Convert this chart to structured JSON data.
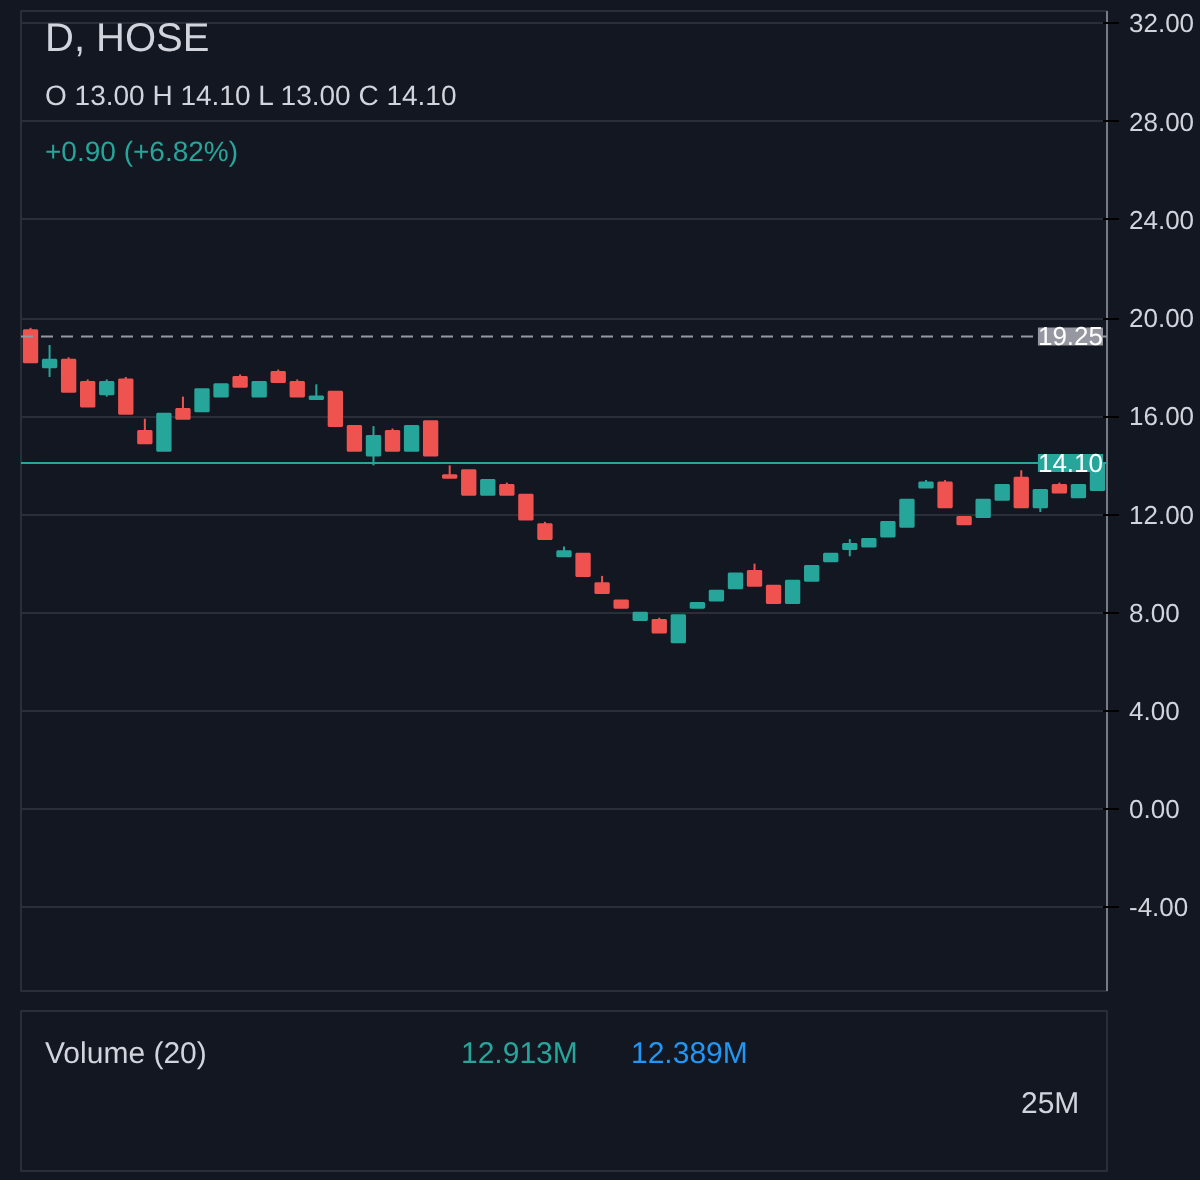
{
  "chart_data": [
    {
      "type": "candlestick",
      "title": "D, HOSE",
      "annotations": [
        "O 13.00 H 14.10 L 13.00 C 14.10",
        "+0.90 (+6.82%)"
      ],
      "categories": [
        null,
        null,
        null,
        null,
        null,
        null,
        null,
        null,
        null,
        null,
        null,
        null,
        null,
        null,
        null,
        null,
        null,
        null,
        null,
        null,
        null,
        null,
        null,
        null,
        null,
        null,
        null,
        null,
        null,
        null,
        null,
        null,
        null,
        null,
        null,
        null,
        null,
        null,
        null,
        null,
        null,
        null,
        null,
        null,
        null,
        null,
        null,
        null,
        null,
        null,
        null,
        null,
        null,
        null,
        null,
        null,
        null
      ],
      "ohlc": [
        [
          19.5,
          19.6,
          18.2,
          18.2
        ],
        [
          18.0,
          18.9,
          17.6,
          18.3
        ],
        [
          18.3,
          18.4,
          17.0,
          17.0
        ],
        [
          17.4,
          17.5,
          16.4,
          16.4
        ],
        [
          16.9,
          17.5,
          16.8,
          17.4
        ],
        [
          17.5,
          17.6,
          16.1,
          16.1
        ],
        [
          15.4,
          15.9,
          14.9,
          14.9
        ],
        [
          14.6,
          16.1,
          14.6,
          16.1
        ],
        [
          16.3,
          16.8,
          15.9,
          15.9
        ],
        [
          16.2,
          17.1,
          16.2,
          17.1
        ],
        [
          16.8,
          17.3,
          16.8,
          17.3
        ],
        [
          17.6,
          17.7,
          17.2,
          17.2
        ],
        [
          16.8,
          17.4,
          16.8,
          17.4
        ],
        [
          17.8,
          17.9,
          17.4,
          17.4
        ],
        [
          17.4,
          17.5,
          16.8,
          16.8
        ],
        [
          16.7,
          17.3,
          16.7,
          16.8
        ],
        [
          17.0,
          17.0,
          15.6,
          15.6
        ],
        [
          15.6,
          15.6,
          14.6,
          14.6
        ],
        [
          14.4,
          15.6,
          14.0,
          15.2
        ],
        [
          15.4,
          15.5,
          14.6,
          14.6
        ],
        [
          14.6,
          15.6,
          14.6,
          15.6
        ],
        [
          15.8,
          15.8,
          14.4,
          14.4
        ],
        [
          13.6,
          14.0,
          13.5,
          13.5
        ],
        [
          13.8,
          13.8,
          12.8,
          12.8
        ],
        [
          12.8,
          13.4,
          12.8,
          13.4
        ],
        [
          13.2,
          13.3,
          12.8,
          12.8
        ],
        [
          12.8,
          12.8,
          11.8,
          11.8
        ],
        [
          11.6,
          11.7,
          11.0,
          11.0
        ],
        [
          10.3,
          10.7,
          10.3,
          10.5
        ],
        [
          10.4,
          10.4,
          9.5,
          9.5
        ],
        [
          9.2,
          9.5,
          8.8,
          8.8
        ],
        [
          8.5,
          8.5,
          8.2,
          8.2
        ],
        [
          7.7,
          8.0,
          7.7,
          8.0
        ],
        [
          7.7,
          7.8,
          7.2,
          7.2
        ],
        [
          6.8,
          7.9,
          6.8,
          7.9
        ],
        [
          8.2,
          8.4,
          8.2,
          8.4
        ],
        [
          8.5,
          8.9,
          8.5,
          8.9
        ],
        [
          9.0,
          9.6,
          9.0,
          9.6
        ],
        [
          9.7,
          10.0,
          9.1,
          9.1
        ],
        [
          9.1,
          9.1,
          8.4,
          8.4
        ],
        [
          8.4,
          9.3,
          8.4,
          9.3
        ],
        [
          9.3,
          9.9,
          9.3,
          9.9
        ],
        [
          10.1,
          10.4,
          10.1,
          10.4
        ],
        [
          10.6,
          11.0,
          10.3,
          10.8
        ],
        [
          10.7,
          11.0,
          10.7,
          11.0
        ],
        [
          11.1,
          11.7,
          11.1,
          11.7
        ],
        [
          11.5,
          12.6,
          11.5,
          12.6
        ],
        [
          13.1,
          13.4,
          13.1,
          13.3
        ],
        [
          13.3,
          13.4,
          12.3,
          12.3
        ],
        [
          11.9,
          11.9,
          11.6,
          11.6
        ],
        [
          11.9,
          12.6,
          11.9,
          12.6
        ],
        [
          12.6,
          13.2,
          12.6,
          13.2
        ],
        [
          13.5,
          13.8,
          12.3,
          12.3
        ],
        [
          12.3,
          13.0,
          12.1,
          13.0
        ],
        [
          13.2,
          13.3,
          12.9,
          12.9
        ],
        [
          12.7,
          13.2,
          12.7,
          13.2
        ],
        [
          13.0,
          14.1,
          13.0,
          14.1
        ]
      ],
      "colors": [
        "#ef5350",
        "#26a69a",
        "#ef5350",
        "#ef5350",
        "#26a69a",
        "#ef5350",
        "#ef5350",
        "#26a69a",
        "#ef5350",
        "#26a69a",
        "#26a69a",
        "#ef5350",
        "#26a69a",
        "#ef5350",
        "#ef5350",
        "#26a69a",
        "#ef5350",
        "#ef5350",
        "#26a69a",
        "#ef5350",
        "#26a69a",
        "#ef5350",
        "#ef5350",
        "#ef5350",
        "#26a69a",
        "#ef5350",
        "#ef5350",
        "#ef5350",
        "#26a69a",
        "#ef5350",
        "#ef5350",
        "#ef5350",
        "#26a69a",
        "#ef5350",
        "#26a69a",
        "#26a69a",
        "#26a69a",
        "#26a69a",
        "#ef5350",
        "#ef5350",
        "#26a69a",
        "#26a69a",
        "#26a69a",
        "#26a69a",
        "#26a69a",
        "#26a69a",
        "#26a69a",
        "#26a69a",
        "#ef5350",
        "#ef5350",
        "#26a69a",
        "#26a69a",
        "#ef5350",
        "#26a69a",
        "#ef5350",
        "#26a69a",
        "#26a69a"
      ],
      "ylim": [
        -7.4,
        32.5
      ],
      "yticks": [
        {
          "value": -4,
          "label": "-4.00"
        },
        {
          "value": 0,
          "label": "0.00"
        },
        {
          "value": 4,
          "label": "4.00"
        },
        {
          "value": 8,
          "label": "8.00"
        },
        {
          "value": 12,
          "label": "12.00"
        },
        {
          "value": 16,
          "label": "16.00"
        },
        {
          "value": 20,
          "label": "20.00"
        },
        {
          "value": 24,
          "label": "24.00"
        },
        {
          "value": 28,
          "label": "28.00"
        },
        {
          "value": 32,
          "label": "32.00"
        }
      ],
      "ref_lines": [
        {
          "axis": "y",
          "value": 19.25,
          "label": "19.25",
          "color": "#9598a1",
          "line_style": "dashed"
        },
        {
          "axis": "y",
          "value": 14.1,
          "label": "14.10",
          "color": "#26a69a",
          "line_style": "solid"
        }
      ],
      "grid": "y"
    },
    {
      "type": "other",
      "title": "Volume (20)",
      "annotations": [
        "12.913M",
        "12.389M",
        "25M"
      ]
    }
  ]
}
